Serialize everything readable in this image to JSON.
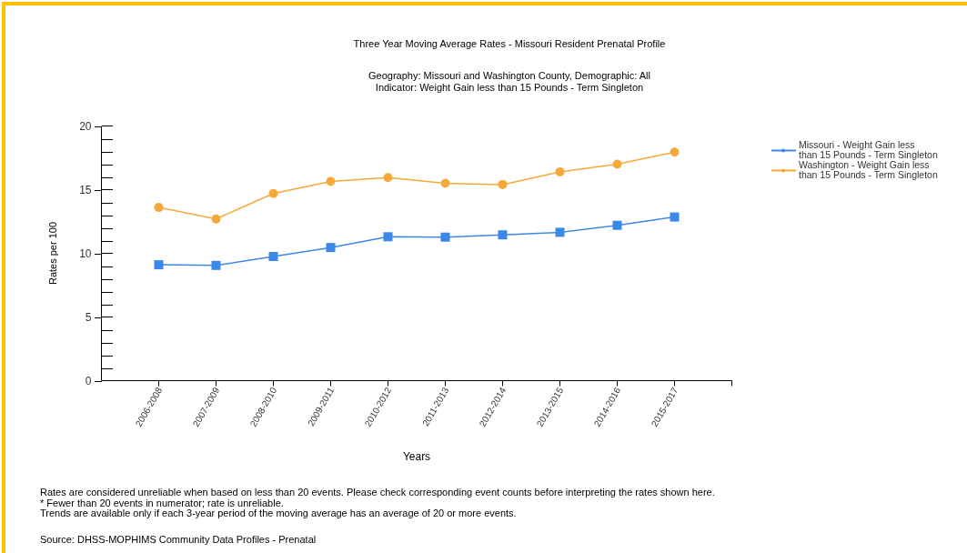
{
  "chart_data": {
    "type": "line",
    "title": "Three Year Moving Average Rates - Missouri Resident Prenatal Profile",
    "subtitle": "Geography: Missouri and Washington County, Demographic: All\nIndicator: Weight Gain less than 15 Pounds - Term Singleton",
    "xlabel": "Years",
    "ylabel": "Rates per 100",
    "categories": [
      "2006-2008",
      "2007-2009",
      "2008-2010",
      "2009-2011",
      "2010-2012",
      "2011-2013",
      "2012-2014",
      "2013-2015",
      "2014-2016",
      "2015-2017"
    ],
    "series": [
      {
        "name": "Missouri - Weight Gain less than 15 Pounds - Term Singleton",
        "color": "#3c88e8",
        "marker": "square",
        "values": [
          9.1,
          9.05,
          9.75,
          10.45,
          11.3,
          11.27,
          11.45,
          11.65,
          12.2,
          12.85
        ]
      },
      {
        "name": "Washington - Weight Gain less than 15 Pounds - Term Singleton",
        "color": "#f5a93a",
        "marker": "circle",
        "values": [
          13.6,
          12.7,
          14.7,
          15.65,
          15.95,
          15.5,
          15.4,
          16.4,
          17,
          17.95
        ]
      }
    ],
    "ylim": [
      0,
      20
    ],
    "yticks": [
      0,
      {
        "value": 1,
        "label": null
      },
      {
        "value": 2,
        "label": null
      },
      {
        "value": 3,
        "label": null
      },
      {
        "value": 4,
        "label": null
      },
      5,
      {
        "value": 6,
        "label": null
      },
      {
        "value": 7,
        "label": null
      },
      {
        "value": 8,
        "label": null
      },
      {
        "value": 9,
        "label": null
      },
      10,
      {
        "value": 11,
        "label": null
      },
      {
        "value": 12,
        "label": null
      },
      {
        "value": 13,
        "label": null
      },
      {
        "value": 14,
        "label": null
      },
      15,
      {
        "value": 16,
        "label": null
      },
      {
        "value": 17,
        "label": null
      },
      {
        "value": 18,
        "label": null
      },
      {
        "value": 19,
        "label": null
      },
      20
    ],
    "grid": false,
    "legend": "top right",
    "line_style": "solid",
    "annotations": [
      "Rates are considered unreliable when based on less than 20 events. Please check corresponding event counts before interpreting the rates shown here.",
      "* Fewer than 20 events in numerator; rate is unreliable.",
      "Trends are available only if each 3-year period of the moving average has an average of 20 or more events.",
      "Source: DHSS-MOPHIMS Community Data Profiles - Prenatal"
    ]
  }
}
